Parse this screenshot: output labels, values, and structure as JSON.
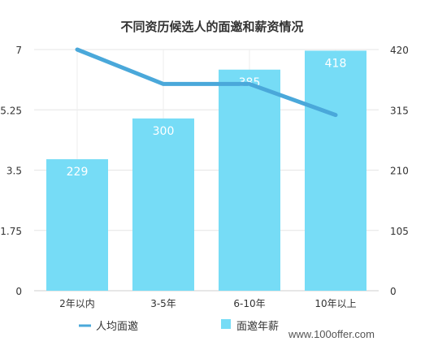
{
  "watermark": "www.100offer.com",
  "chart_data": {
    "type": "bar+line",
    "title": "不同资历候选人的面邀和薪资情况",
    "categories": [
      "2年以内",
      "3-5年",
      "6-10年",
      "10年以上"
    ],
    "series": [
      {
        "name": "面邀年薪",
        "type": "bar",
        "axis": "right",
        "values": [
          229,
          300,
          385,
          418
        ],
        "data_labels": [
          "229",
          "300",
          "385",
          "418"
        ],
        "color": "#76dcf6"
      },
      {
        "name": "人均面邀",
        "type": "line",
        "axis": "left",
        "values": [
          7.0,
          6.0,
          6.0,
          5.1
        ],
        "color": "#4aa8da"
      }
    ],
    "y_left": {
      "ylim": [
        0,
        7
      ],
      "ticks": [
        "0",
        "1.75",
        "3.5",
        "5.25",
        "7"
      ]
    },
    "y_right": {
      "ylim": [
        0,
        420
      ],
      "ticks": [
        "0",
        "105",
        "210",
        "315",
        "420"
      ]
    },
    "grid": true,
    "legend_position": "bottom-left"
  }
}
